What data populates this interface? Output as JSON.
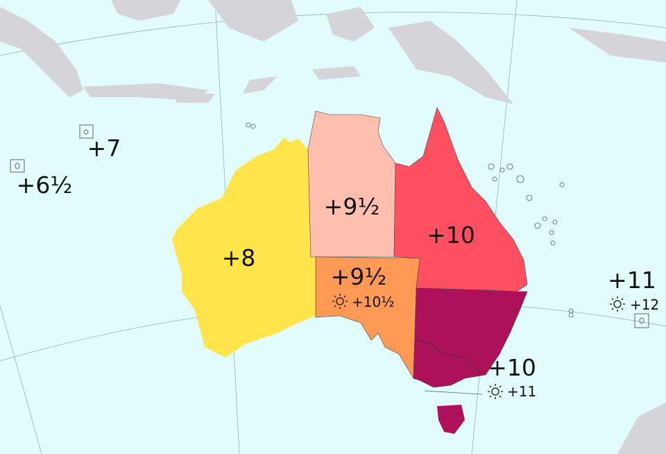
{
  "map": {
    "colors": {
      "ocean": "#e2fbfb",
      "foreign_land": "#d4d4da",
      "utc_plus_8": "#ffe44c",
      "utc_plus_9_5_north": "#ffbfae",
      "utc_plus_10_qld": "#ff5062",
      "utc_plus_9_5_sa_dst": "#ff9955",
      "utc_plus_10_dst": "#ac1159"
    },
    "zones": {
      "wa": {
        "label": "+8"
      },
      "nt": {
        "label": "+9½"
      },
      "qld": {
        "label": "+10"
      },
      "sa": {
        "label": "+9½",
        "dst": "+10½"
      },
      "se": {
        "label": "+10",
        "dst": "+11"
      },
      "norfolk": {
        "label": "+11",
        "dst": "+12"
      },
      "christmas": {
        "label": "+7"
      },
      "cocos": {
        "label": "+6½"
      }
    },
    "dst_icon": "sun-icon"
  }
}
